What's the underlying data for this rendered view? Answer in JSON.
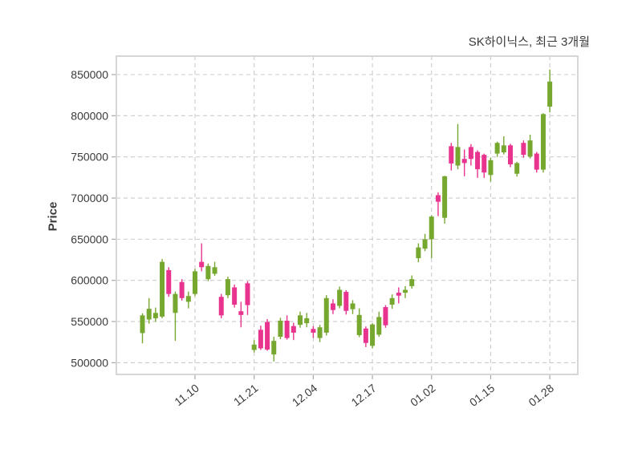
{
  "chart_data": {
    "type": "candlestick",
    "title": "SK하이닉스, 최근 3개월",
    "ylabel": "Price",
    "grid": true,
    "ylim": [
      486000,
      872000
    ],
    "yticks": [
      500000,
      550000,
      600000,
      650000,
      700000,
      750000,
      800000,
      850000
    ],
    "xticks": [
      {
        "label": "11.10",
        "index": 8
      },
      {
        "label": "11.21",
        "index": 17
      },
      {
        "label": "12.04",
        "index": 26
      },
      {
        "label": "12.17",
        "index": 35
      },
      {
        "label": "01.02",
        "index": 44
      },
      {
        "label": "01.15",
        "index": 53
      },
      {
        "label": "01.28",
        "index": 62
      }
    ],
    "colors": {
      "up": "#76A72F",
      "down": "#E8338F"
    },
    "candles_format": [
      "open",
      "high",
      "low",
      "close"
    ],
    "candles": [
      [
        536000,
        560000,
        523500,
        557500
      ],
      [
        552500,
        578500,
        547500,
        565500
      ],
      [
        554000,
        567000,
        549500,
        560500
      ],
      [
        556000,
        626000,
        554000,
        622500
      ],
      [
        612500,
        616000,
        580000,
        583500
      ],
      [
        560500,
        586500,
        526500,
        583500
      ],
      [
        598000,
        601500,
        575500,
        578500
      ],
      [
        574000,
        586500,
        566000,
        581000
      ],
      [
        583500,
        614000,
        581000,
        611000
      ],
      [
        622500,
        645000,
        611000,
        616000
      ],
      [
        601500,
        620500,
        599000,
        617500
      ],
      [
        608000,
        622500,
        605500,
        616000
      ],
      [
        580000,
        583500,
        554000,
        557500
      ],
      [
        582000,
        604500,
        578500,
        601500
      ],
      [
        591500,
        595000,
        567000,
        570500
      ],
      [
        562500,
        574000,
        543000,
        558000
      ],
      [
        596500,
        599000,
        558000,
        570000
      ],
      [
        515500,
        527500,
        512500,
        522000
      ],
      [
        540000,
        545000,
        515500,
        517500
      ],
      [
        549500,
        553000,
        514500,
        516000
      ],
      [
        510000,
        531500,
        501500,
        526500
      ],
      [
        531500,
        554500,
        528500,
        551000
      ],
      [
        551000,
        557500,
        528000,
        530000
      ],
      [
        544500,
        548500,
        527500,
        536500
      ],
      [
        546000,
        562000,
        542500,
        557500
      ],
      [
        548000,
        560500,
        543000,
        554000
      ],
      [
        541000,
        544500,
        530000,
        536500
      ],
      [
        530000,
        546000,
        525000,
        543000
      ],
      [
        536500,
        582000,
        533000,
        578500
      ],
      [
        572000,
        577000,
        559000,
        564000
      ],
      [
        569000,
        592500,
        566000,
        588500
      ],
      [
        586000,
        588000,
        558500,
        563000
      ],
      [
        565000,
        576000,
        559000,
        572000
      ],
      [
        533500,
        566000,
        531000,
        558000
      ],
      [
        541500,
        544000,
        519000,
        524000
      ],
      [
        520500,
        548000,
        517500,
        546500
      ],
      [
        534000,
        562000,
        531500,
        555500
      ],
      [
        567500,
        570000,
        542500,
        545500
      ],
      [
        570500,
        583000,
        565500,
        578500
      ],
      [
        585000,
        591500,
        572000,
        581500
      ],
      [
        585000,
        593000,
        578500,
        588500
      ],
      [
        593000,
        606000,
        590000,
        601500
      ],
      [
        627000,
        645000,
        622000,
        640000
      ],
      [
        638500,
        656500,
        635500,
        650000
      ],
      [
        650000,
        679000,
        627000,
        677500
      ],
      [
        703500,
        707000,
        678000,
        695500
      ],
      [
        676000,
        727000,
        669000,
        726500
      ],
      [
        763000,
        767000,
        733500,
        742000
      ],
      [
        739500,
        790000,
        735000,
        762000
      ],
      [
        747500,
        759000,
        726500,
        742500
      ],
      [
        762000,
        765500,
        739500,
        747500
      ],
      [
        756000,
        758000,
        724500,
        735000
      ],
      [
        752500,
        754000,
        724500,
        731000
      ],
      [
        728000,
        749000,
        720000,
        746000
      ],
      [
        754000,
        768500,
        750000,
        767000
      ],
      [
        755500,
        775000,
        753000,
        764000
      ],
      [
        764000,
        766000,
        737500,
        741000
      ],
      [
        729500,
        744000,
        726000,
        742500
      ],
      [
        767000,
        770000,
        749000,
        752500
      ],
      [
        750500,
        777000,
        748000,
        770000
      ],
      [
        754000,
        756000,
        731000,
        734500
      ],
      [
        734500,
        803000,
        731000,
        802000
      ],
      [
        811000,
        856000,
        804000,
        841500
      ]
    ]
  }
}
